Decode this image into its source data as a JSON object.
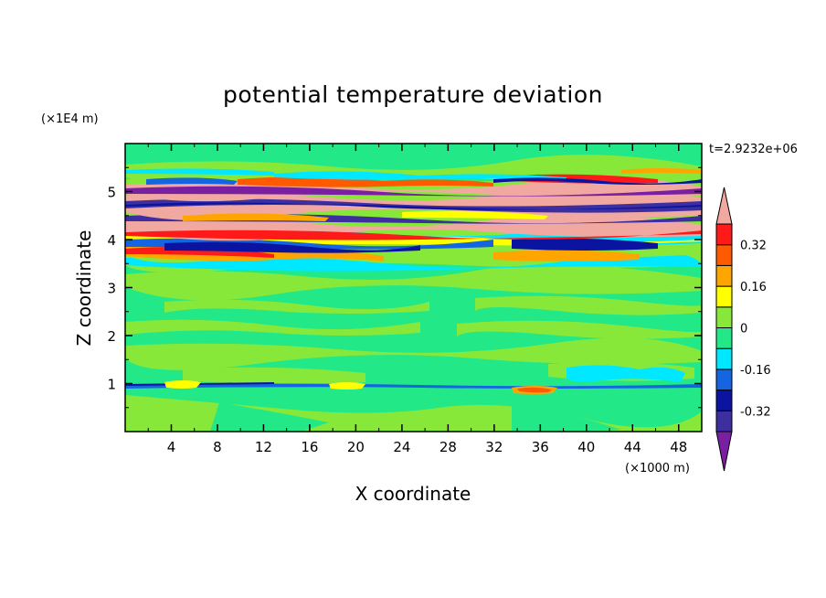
{
  "chart_data": {
    "type": "heatmap",
    "title": "potential temperature deviation",
    "xlabel": "X coordinate",
    "ylabel": "Z coordinate",
    "x_unit": "(×1000 m)",
    "y_unit": "(×1E4 m)",
    "time_label": "t=2.9232e+06",
    "xlim": [
      0,
      50
    ],
    "ylim": [
      0,
      6
    ],
    "x_ticks": [
      4,
      8,
      12,
      16,
      20,
      24,
      28,
      32,
      36,
      40,
      44,
      48
    ],
    "x_tick_labels": [
      "4",
      "8",
      "12",
      "16",
      "20",
      "24",
      "28",
      "32",
      "36",
      "40",
      "44",
      "48"
    ],
    "y_ticks": [
      1,
      2,
      3,
      4,
      5
    ],
    "y_tick_labels": [
      "1",
      "2",
      "3",
      "4",
      "5"
    ],
    "colorbar": {
      "levels": [
        -0.48,
        -0.4,
        -0.32,
        -0.24,
        -0.16,
        -0.08,
        0,
        0.08,
        0.16,
        0.24,
        0.32,
        0.4,
        0.48
      ],
      "colors": [
        "#7b1fa2",
        "#3d2fa0",
        "#0a14a0",
        "#1565e0",
        "#00e8ff",
        "#22e888",
        "#88e83a",
        "#ffff00",
        "#ffa500",
        "#ff5a00",
        "#ff1a1a",
        "#f0a8a0"
      ],
      "tick_labels": [
        "0.32",
        "0.16",
        "0",
        "-0.16",
        "-0.32"
      ],
      "tick_values": [
        0.32,
        0.16,
        0,
        -0.16,
        -0.32
      ]
    }
  }
}
